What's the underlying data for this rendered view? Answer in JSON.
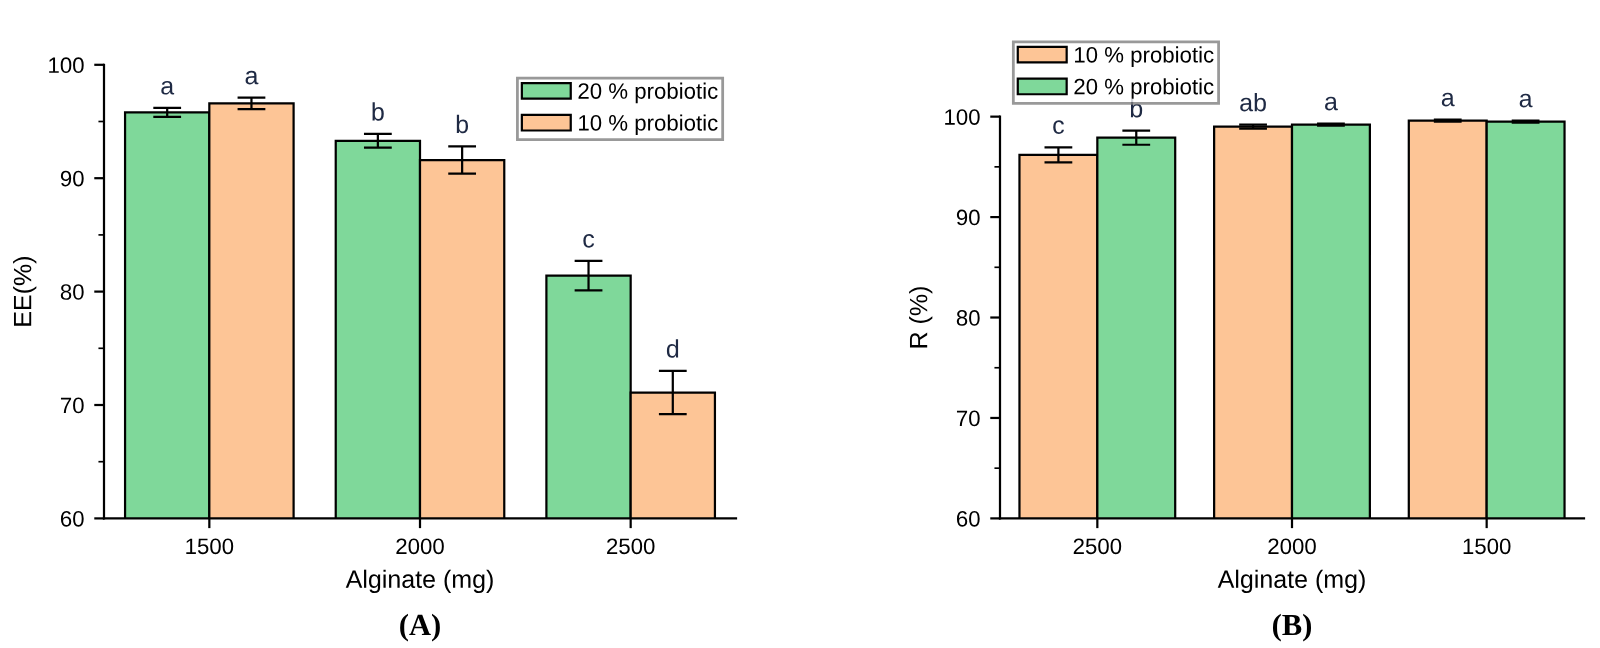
{
  "chart_data": [
    {
      "type": "bar",
      "xlabel": "Alginate (mg)",
      "ylabel": "EE(%)",
      "categories": [
        "1500",
        "2000",
        "2500"
      ],
      "ylim": [
        60,
        100
      ],
      "yticks": [
        60,
        70,
        80,
        90,
        100
      ],
      "legend": "top right",
      "grid": false,
      "series": [
        {
          "name": "20 % probiotic",
          "color": "#7fd89a",
          "values": [
            95.8,
            93.3,
            81.4
          ],
          "errors": [
            0.4,
            0.6,
            1.3
          ]
        },
        {
          "name": "10 % probiotic",
          "color": "#fdc596",
          "values": [
            96.6,
            91.6,
            71.1
          ],
          "errors": [
            0.5,
            1.2,
            1.9
          ]
        }
      ],
      "annotations": [
        "(A)",
        {
          "text": "a",
          "x": "1500",
          "y": 95.8
        },
        {
          "text": "a",
          "x": "1500",
          "y": 96.6
        },
        {
          "text": "b",
          "x": "2000",
          "y": 93.3
        },
        {
          "text": "b",
          "x": "2000",
          "y": 91.6
        },
        {
          "text": "c",
          "x": "2500",
          "y": 81.4
        },
        {
          "text": "d",
          "x": "2500",
          "y": 71.1
        }
      ]
    },
    {
      "type": "bar",
      "xlabel": "Alginate (mg)",
      "ylabel": "R (%)",
      "categories": [
        "2500",
        "2000",
        "1500"
      ],
      "ylim": [
        60,
        100
      ],
      "yticks": [
        60,
        70,
        80,
        90,
        100
      ],
      "legend": "top left",
      "grid": false,
      "series": [
        {
          "name": "10 % probiotic",
          "color": "#fdc596",
          "values": [
            96.2,
            99.0,
            99.6
          ],
          "errors": [
            0.75,
            0.2,
            0.1
          ]
        },
        {
          "name": "20 % probiotic",
          "color": "#7fd89a",
          "values": [
            97.9,
            99.2,
            99.5
          ],
          "errors": [
            0.7,
            0.1,
            0.1
          ]
        }
      ],
      "annotations": [
        "(B)",
        {
          "text": "c",
          "x": "2500",
          "y": 96.2
        },
        {
          "text": "b",
          "x": "2500",
          "y": 97.9
        },
        {
          "text": "ab",
          "x": "2000",
          "y": 99.0
        },
        {
          "text": "a",
          "x": "2000",
          "y": 99.2
        },
        {
          "text": "a",
          "x": "1500",
          "y": 99.6
        },
        {
          "text": "a",
          "x": "1500",
          "y": 99.5
        }
      ]
    }
  ]
}
